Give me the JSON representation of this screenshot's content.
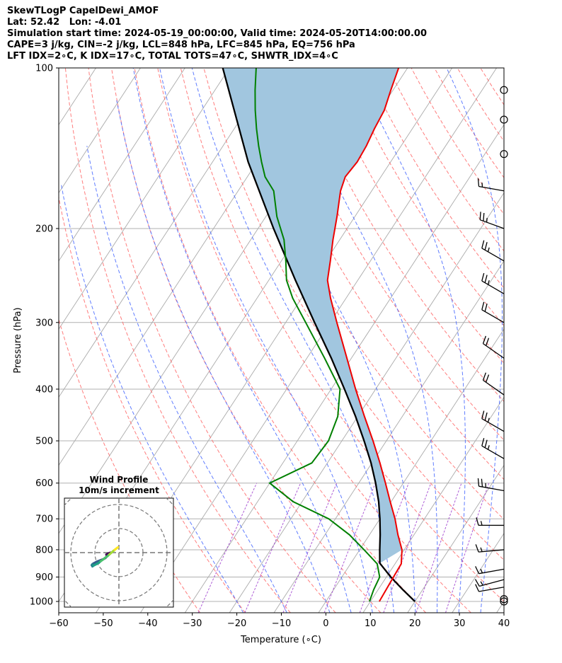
{
  "header": {
    "line1": "SkewTLogP CapelDewi_AMOF",
    "line2": "Lat: 52.42   Lon: -4.01",
    "line3": "Simulation start time: 2024-05-19_00:00:00, Valid time: 2024-05-20T14:00:00.00",
    "line4": "CAPE=3 j/kg, CIN=-2 j/kg, LCL=848 hPa, LFC=845 hPa, EQ=756 hPa",
    "line5": "LFT IDX=2∘C, K IDX=17∘C, TOTAL TOTS=47∘C, SHWTR_IDX=4∘C"
  },
  "colors": {
    "temperature": "#ee0000",
    "dewpoint": "#008000",
    "parcel": "#000000",
    "cape_fill": "#a1c6df",
    "dry_adiabat": "#ff6666",
    "moist_adiabat": "#4466ff",
    "mixing_ratio": "#9933cc",
    "isotherm": "#aaaaaa"
  },
  "chart_data": {
    "type": "skewt-logp",
    "xlabel": "Temperature (∘C)",
    "ylabel": "Pressure (hPa)",
    "xlim": [
      -60,
      40
    ],
    "ylim": [
      1050,
      100
    ],
    "xticks": [
      "−60",
      "−50",
      "−40",
      "−30",
      "−20",
      "−10",
      "0",
      "10",
      "20",
      "30",
      "40"
    ],
    "xtick_values": [
      -60,
      -50,
      -40,
      -30,
      -20,
      -10,
      0,
      10,
      20,
      30,
      40
    ],
    "yticks": [
      "100",
      "200",
      "300",
      "400",
      "500",
      "600",
      "700",
      "800",
      "900",
      "1000"
    ],
    "ytick_values": [
      100,
      200,
      300,
      400,
      500,
      600,
      700,
      800,
      900,
      1000
    ],
    "temperature": {
      "p": [
        1000,
        950,
        900,
        850,
        800,
        750,
        700,
        650,
        600,
        550,
        500,
        450,
        400,
        350,
        300,
        270,
        250,
        230,
        210,
        190,
        170,
        160,
        150,
        140,
        130,
        120,
        110,
        100
      ],
      "t_c": [
        12,
        11.8,
        11.6,
        11.4,
        9.5,
        6.4,
        3.4,
        -0.2,
        -4.0,
        -8.2,
        -13.0,
        -18.5,
        -24.5,
        -31.0,
        -38.5,
        -43.5,
        -46.8,
        -49.0,
        -51.5,
        -54.0,
        -57.0,
        -58.0,
        -57.5,
        -57.8,
        -58.5,
        -59.0,
        -60.5,
        -62.0
      ]
    },
    "dewpoint": {
      "p": [
        1000,
        950,
        900,
        850,
        800,
        750,
        700,
        650,
        600,
        550,
        500,
        450,
        400,
        350,
        300,
        270,
        250,
        230,
        210,
        190,
        170,
        160,
        150,
        140,
        130,
        120,
        110,
        100
      ],
      "td_c": [
        9.8,
        9.0,
        8.5,
        6.0,
        1.0,
        -4.5,
        -11.5,
        -22.0,
        -30.0,
        -23.5,
        -23.0,
        -24.5,
        -28.0,
        -36.0,
        -45.5,
        -52.0,
        -56.0,
        -59.0,
        -62.5,
        -67.5,
        -72.0,
        -76.0,
        -79.0,
        -82.0,
        -85.0,
        -88.0,
        -91.0,
        -94.0
      ]
    },
    "parcel": {
      "p": [
        1000,
        950,
        900,
        848,
        800,
        750,
        700,
        650,
        600,
        550,
        500,
        450,
        400,
        350,
        300,
        250,
        200,
        150,
        100
      ],
      "t_c": [
        20.0,
        15.5,
        11.0,
        6.5,
        4.5,
        2.4,
        0.0,
        -2.8,
        -6.2,
        -10.2,
        -15.0,
        -20.5,
        -27.0,
        -34.5,
        -43.5,
        -54.0,
        -66.5,
        -82.0,
        -101.5
      ]
    },
    "cape_area": "shaded region between temperature and parcel profiles",
    "wind_barbs": {
      "p": [
        1000,
        990,
        940,
        910,
        870,
        800,
        720,
        620,
        540,
        480,
        410,
        350,
        300,
        265,
        230,
        200,
        170,
        145,
        125,
        110
      ],
      "speed_kt": [
        0,
        0,
        10,
        15,
        15,
        15,
        15,
        25,
        25,
        25,
        20,
        20,
        20,
        25,
        25,
        25,
        15,
        0,
        0,
        0
      ],
      "direction_deg": [
        0,
        0,
        260,
        255,
        260,
        265,
        270,
        280,
        300,
        300,
        305,
        305,
        300,
        300,
        300,
        290,
        280,
        0,
        0,
        0
      ]
    },
    "hodograph": {
      "title": "Wind Profile",
      "subtitle": "10m/s increment",
      "u": [
        -3.5,
        -4.5,
        -5.2,
        -5.0,
        -5.6,
        -6.2,
        -7.2,
        -8.0,
        -8.8,
        -9.6,
        -10.4,
        -11.0,
        -11.3,
        -11.0,
        -10.6,
        -9.4,
        -8.4,
        -7.6,
        -6.8,
        -5.8,
        -4.8,
        -4.0,
        -3.2,
        -2.4,
        -1.7,
        -1.2,
        -0.8,
        -0.4
      ],
      "v": [
        0.0,
        -0.4,
        -0.8,
        -1.6,
        -2.2,
        -2.6,
        -3.0,
        -3.3,
        -3.6,
        -4.0,
        -4.4,
        -4.8,
        -5.2,
        -5.7,
        -5.4,
        -4.8,
        -4.3,
        -3.6,
        -3.0,
        -2.2,
        -1.5,
        -0.8,
        -0.1,
        0.6,
        1.2,
        1.6,
        1.9,
        2.2
      ]
    }
  }
}
